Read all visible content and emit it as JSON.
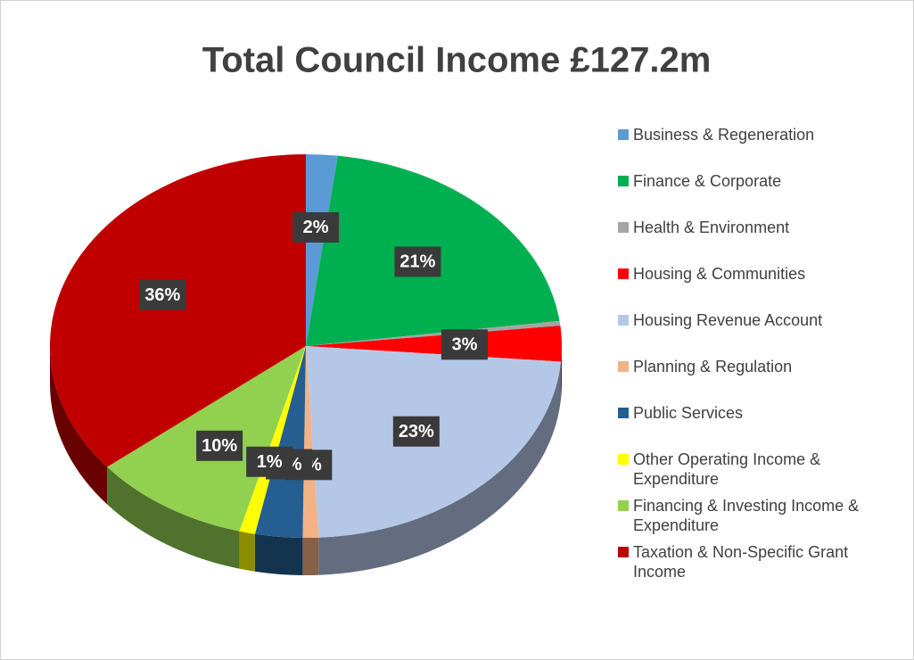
{
  "chart_data": {
    "type": "pie",
    "title": "Total Council Income £127.2m",
    "categories": [
      "Business & Regeneration",
      "Finance & Corporate",
      "Health & Environment",
      "Housing & Communities",
      "Housing Revenue Account",
      "Planning & Regulation",
      "Public Services",
      "Other Operating Income & Expenditure",
      "Financing & Investing Income & Expenditure",
      "Taxation & Non-Specific Grant Income"
    ],
    "values": [
      2,
      21,
      0.4,
      3,
      23,
      1,
      3,
      1,
      10,
      36
    ],
    "value_labels": [
      "2%",
      "21%",
      null,
      "3%",
      "23%",
      "1%",
      "3%",
      "1%",
      "10%",
      "36%"
    ],
    "colors": [
      "#5b9bd5",
      "#00b050",
      "#a5a5a5",
      "#ff0000",
      "#b4c7e7",
      "#f4b183",
      "#255e91",
      "#ffff00",
      "#92d050",
      "#c00000"
    ],
    "legend": "right"
  }
}
